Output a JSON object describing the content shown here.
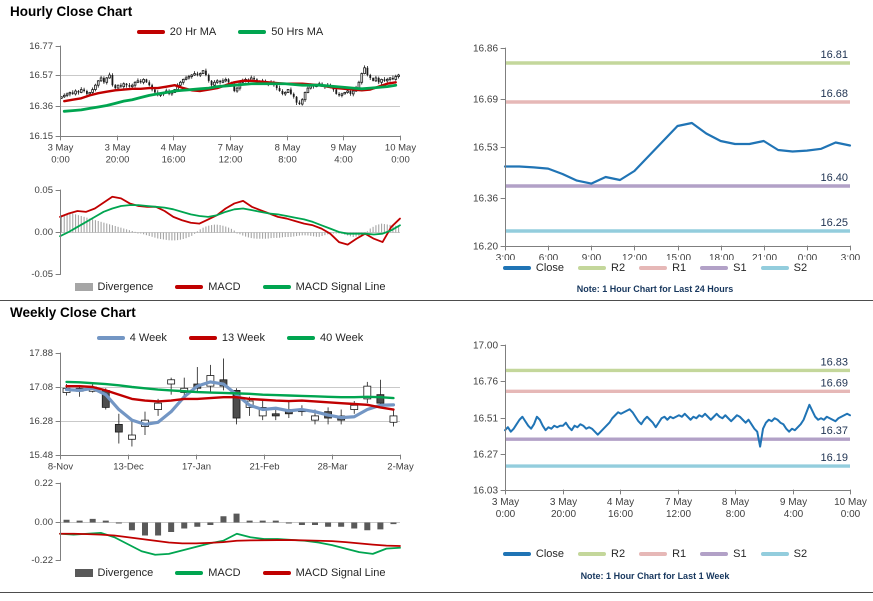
{
  "titles": {
    "hourly": "Hourly Close Chart",
    "weekly": "Weekly Close Chart"
  },
  "colors": {
    "grid": "#C9C9C9",
    "axis": "#7F7F7F",
    "tick_text": "#404040",
    "candle": "#1A1A1A",
    "candle_fill": "#4D4D4D",
    "level_label": "#1F3352",
    "note": "#17375E",
    "title": "#000000",
    "separator": "#4D4D4D",
    "close_blue": "#2074B5",
    "ma_red": "#C00000",
    "ma_green": "#00A550",
    "ma_blue": "#7396C4",
    "divergence_light": "#A6A6A6",
    "divergence_dark": "#595959",
    "r2": "#C4D79B",
    "r1": "#E6B8B7",
    "s1": "#B2A1C7",
    "s2": "#93CDDD"
  },
  "chart_data": [
    {
      "id": "hourly-price",
      "type": "candlestick",
      "title": "Hourly Close Chart",
      "ylim": [
        16.15,
        16.77
      ],
      "ytick_values": [
        16.77,
        16.57,
        16.36,
        16.15
      ],
      "ytick_labels": [
        "16.77",
        "16.57",
        "16.36",
        "16.15"
      ],
      "gridlines": [
        16.57,
        16.36
      ],
      "xtick_labels": [
        [
          "3 May",
          "0:00"
        ],
        [
          "3 May",
          "20:00"
        ],
        [
          "4 May",
          "16:00"
        ],
        [
          "7 May",
          "12:00"
        ],
        [
          "8 May",
          "8:00"
        ],
        [
          "9 May",
          "4:00"
        ],
        [
          "10 May",
          "0:00"
        ]
      ],
      "close": [
        16.42,
        16.43,
        16.44,
        16.45,
        16.44,
        16.46,
        16.45,
        16.47,
        16.46,
        16.44,
        16.45,
        16.47,
        16.5,
        16.53,
        16.55,
        16.52,
        16.55,
        16.57,
        16.5,
        16.48,
        16.5,
        16.49,
        16.51,
        16.5,
        16.49,
        16.5,
        16.52,
        16.53,
        16.52,
        16.54,
        16.52,
        16.5,
        16.47,
        16.45,
        16.43,
        16.44,
        16.45,
        16.46,
        16.44,
        16.45,
        16.47,
        16.5,
        16.52,
        16.54,
        16.55,
        16.56,
        16.57,
        16.58,
        16.57,
        16.58,
        16.6,
        16.57,
        16.53,
        16.5,
        16.52,
        16.53,
        16.52,
        16.53,
        16.54,
        16.52,
        16.5,
        16.46,
        16.48,
        16.52,
        16.53,
        16.54,
        16.53,
        16.55,
        16.54,
        16.53,
        16.52,
        16.53,
        16.52,
        16.51,
        16.52,
        16.5,
        16.48,
        16.46,
        16.44,
        16.45,
        16.47,
        16.44,
        16.42,
        16.38,
        16.37,
        16.4,
        16.45,
        16.48,
        16.5,
        16.49,
        16.5,
        16.51,
        16.5,
        16.49,
        16.5,
        16.49,
        16.47,
        16.44,
        16.43,
        16.44,
        16.45,
        16.46,
        16.44,
        16.46,
        16.48,
        16.52,
        16.58,
        16.62,
        16.57,
        16.55,
        16.53,
        16.55,
        16.52,
        16.54,
        16.53,
        16.54,
        16.55,
        16.54,
        16.56,
        16.57
      ],
      "series": [
        {
          "name": "20 Hr MA",
          "color": "#C00000",
          "width": 2.4,
          "values": [
            16.39,
            16.4,
            16.41,
            16.43,
            16.445,
            16.455,
            16.465,
            16.47,
            16.475,
            16.475,
            16.48,
            16.48,
            16.49,
            16.5,
            16.48,
            16.465,
            16.46,
            16.47,
            16.48,
            16.5,
            16.52,
            16.53,
            16.53,
            16.525,
            16.52,
            16.515,
            16.51,
            16.51,
            16.51,
            16.505,
            16.5,
            16.49,
            16.48,
            16.475,
            16.47,
            16.465,
            16.47,
            16.49,
            16.51,
            16.52
          ]
        },
        {
          "name": "50 Hrs MA",
          "color": "#00A550",
          "width": 2.8,
          "values": [
            16.32,
            16.325,
            16.33,
            16.34,
            16.35,
            16.36,
            16.375,
            16.39,
            16.4,
            16.415,
            16.43,
            16.44,
            16.45,
            16.46,
            16.465,
            16.47,
            16.475,
            16.48,
            16.49,
            16.495,
            16.5,
            16.505,
            16.51,
            16.51,
            16.51,
            16.51,
            16.51,
            16.505,
            16.5,
            16.5,
            16.5,
            16.495,
            16.49,
            16.485,
            16.48,
            16.475,
            16.48,
            16.485,
            16.49,
            16.5
          ]
        }
      ]
    },
    {
      "id": "hourly-macd",
      "type": "macd",
      "ylim": [
        -0.05,
        0.05
      ],
      "ytick_values": [
        0.05,
        0.0,
        -0.05
      ],
      "ytick_labels": [
        "0.05",
        "0.00",
        "-0.05"
      ],
      "divergence": {
        "name": "Divergence",
        "color": "#A6A6A6",
        "values": [
          0.02,
          0.021,
          0.022,
          0.02,
          0.018,
          0.016,
          0.014,
          0.012,
          0.01,
          0.008,
          0.006,
          0.004,
          0.002,
          0.0,
          -0.002,
          -0.004,
          -0.006,
          -0.008,
          -0.009,
          -0.01,
          -0.01,
          -0.009,
          -0.007,
          -0.004,
          0.002,
          0.006,
          0.008,
          0.009,
          0.008,
          0.006,
          0.003,
          -0.002,
          -0.005,
          -0.007,
          -0.008,
          -0.008,
          -0.008,
          -0.007,
          -0.007,
          -0.006,
          -0.006,
          -0.005,
          -0.004,
          -0.004,
          -0.005,
          -0.006,
          -0.004,
          -0.002,
          -0.001,
          -0.002,
          -0.004,
          -0.006,
          -0.005,
          -0.003,
          0.004,
          0.008,
          0.01,
          0.009,
          0.008,
          0.007
        ]
      },
      "lines": [
        {
          "name": "MACD",
          "color": "#C00000",
          "width": 1.8,
          "values": [
            0.018,
            0.022,
            0.025,
            0.024,
            0.028,
            0.035,
            0.042,
            0.04,
            0.034,
            0.031,
            0.03,
            0.03,
            0.025,
            0.018,
            0.014,
            0.011,
            0.01,
            0.015,
            0.02,
            0.028,
            0.034,
            0.037,
            0.03,
            0.026,
            0.022,
            0.018,
            0.016,
            0.013,
            0.01,
            0.008,
            0.004,
            -0.002,
            -0.012,
            -0.015,
            -0.008,
            -0.002,
            -0.008,
            -0.012,
            0.006,
            0.016
          ]
        },
        {
          "name": "MACD Signal Line",
          "color": "#00A550",
          "width": 1.8,
          "values": [
            -0.005,
            0.0,
            0.006,
            0.012,
            0.018,
            0.024,
            0.028,
            0.031,
            0.032,
            0.032,
            0.031,
            0.03,
            0.029,
            0.027,
            0.024,
            0.021,
            0.019,
            0.018,
            0.02,
            0.024,
            0.027,
            0.028,
            0.026,
            0.024,
            0.022,
            0.021,
            0.019,
            0.017,
            0.015,
            0.012,
            0.008,
            0.004,
            0.0,
            -0.002,
            -0.002,
            -0.002,
            -0.003,
            -0.002,
            0.002,
            0.008
          ]
        }
      ]
    },
    {
      "id": "hourly-pivot",
      "type": "pivot",
      "ylim": [
        16.2,
        16.86
      ],
      "ytick_values": [
        16.86,
        16.69,
        16.53,
        16.36,
        16.2
      ],
      "ytick_labels": [
        "16.86",
        "16.69",
        "16.53",
        "16.36",
        "16.20"
      ],
      "xtick_labels": [
        "3:00",
        "6:00",
        "9:00",
        "12:00",
        "15:00",
        "18:00",
        "21:00",
        "0:00",
        "3:00"
      ],
      "close": {
        "name": "Close",
        "color": "#2074B5",
        "width": 2.2,
        "values": [
          16.465,
          16.465,
          16.462,
          16.458,
          16.44,
          16.418,
          16.408,
          16.43,
          16.42,
          16.45,
          16.5,
          16.55,
          16.6,
          16.61,
          16.575,
          16.55,
          16.54,
          16.54,
          16.55,
          16.52,
          16.515,
          16.518,
          16.524,
          16.545,
          16.535
        ]
      },
      "levels": [
        {
          "name": "R2",
          "label": "16.81",
          "value": 16.81,
          "color": "#C4D79B"
        },
        {
          "name": "R1",
          "label": "16.68",
          "value": 16.68,
          "color": "#E6B8B7"
        },
        {
          "name": "S1",
          "label": "16.40",
          "value": 16.4,
          "color": "#B2A1C7"
        },
        {
          "name": "S2",
          "label": "16.25",
          "value": 16.25,
          "color": "#93CDDD"
        }
      ],
      "note": "Note: 1 Hour Chart for Last 24 Hours"
    },
    {
      "id": "weekly-price",
      "type": "candlestick",
      "title": "Weekly Close Chart",
      "ylim": [
        15.48,
        17.88
      ],
      "ytick_values": [
        17.88,
        17.08,
        16.28,
        15.48
      ],
      "ytick_labels": [
        "17.88",
        "17.08",
        "16.28",
        "15.48"
      ],
      "gridlines": [
        17.08,
        16.28
      ],
      "xtick_labels": [
        "8-Nov",
        "13-Dec",
        "17-Jan",
        "21-Feb",
        "28-Mar",
        "2-May"
      ],
      "open": [
        16.95,
        17.05,
        16.98,
        17.0,
        16.2,
        15.85,
        16.15,
        16.55,
        17.15,
        16.95,
        17.15,
        17.1,
        17.25,
        17.0,
        16.6,
        16.4,
        16.45,
        16.55,
        16.55,
        16.3,
        16.5,
        16.4,
        16.55,
        16.8,
        16.9,
        16.25
      ],
      "close": [
        17.05,
        16.98,
        17.08,
        16.6,
        16.02,
        15.95,
        16.3,
        16.7,
        17.25,
        17.05,
        17.05,
        17.35,
        17.1,
        16.35,
        16.75,
        16.6,
        16.4,
        16.45,
        16.5,
        16.4,
        16.35,
        16.3,
        16.65,
        17.1,
        16.7,
        16.4
      ],
      "high": [
        17.15,
        17.1,
        17.18,
        17.05,
        16.45,
        16.3,
        16.5,
        16.8,
        17.3,
        17.3,
        17.55,
        17.6,
        17.75,
        17.05,
        16.85,
        16.75,
        16.55,
        16.75,
        16.65,
        16.55,
        16.6,
        16.55,
        16.75,
        17.2,
        17.25,
        16.55
      ],
      "low": [
        16.88,
        16.85,
        16.95,
        16.55,
        15.75,
        15.68,
        15.95,
        16.4,
        16.9,
        16.85,
        16.95,
        16.95,
        17.0,
        16.2,
        16.4,
        16.3,
        16.3,
        16.35,
        16.4,
        16.2,
        16.2,
        16.2,
        16.45,
        16.7,
        16.6,
        16.15
      ],
      "series": [
        {
          "name": "4 Week",
          "color": "#7396C4",
          "width": 3.2,
          "values": [
            17.02,
            17.0,
            17.05,
            16.9,
            16.55,
            16.3,
            16.2,
            16.25,
            16.5,
            16.85,
            17.1,
            17.2,
            17.15,
            16.9,
            16.65,
            16.55,
            16.58,
            16.52,
            16.55,
            16.5,
            16.42,
            16.36,
            16.38,
            16.55,
            16.65,
            16.66
          ]
        },
        {
          "name": "13 Week",
          "color": "#C00000",
          "width": 2.4,
          "values": [
            17.1,
            17.1,
            17.08,
            17.0,
            16.9,
            16.8,
            16.76,
            16.74,
            16.76,
            16.8,
            16.8,
            16.82,
            16.84,
            16.84,
            16.8,
            16.78,
            16.76,
            16.75,
            16.76,
            16.74,
            16.72,
            16.7,
            16.68,
            16.66,
            16.6,
            16.55
          ]
        },
        {
          "name": "40 Week",
          "color": "#00A550",
          "width": 2.4,
          "values": [
            17.2,
            17.19,
            17.17,
            17.15,
            17.12,
            17.08,
            17.05,
            17.02,
            17.0,
            16.98,
            16.96,
            16.95,
            16.94,
            16.93,
            16.92,
            16.9,
            16.89,
            16.88,
            16.87,
            16.86,
            16.85,
            16.84,
            16.84,
            16.85,
            16.84,
            16.82
          ]
        }
      ]
    },
    {
      "id": "weekly-macd",
      "type": "macd",
      "ylim": [
        -0.22,
        0.22
      ],
      "ytick_values": [
        0.22,
        0.0,
        -0.22
      ],
      "ytick_labels": [
        "0.22",
        "0.00",
        "-0.22"
      ],
      "divergence": {
        "name": "Divergence",
        "color": "#595959",
        "values": [
          0.01,
          0.005,
          0.015,
          0.005,
          -0.01,
          -0.05,
          -0.08,
          -0.08,
          -0.06,
          -0.04,
          -0.03,
          -0.02,
          0.03,
          0.045,
          0.005,
          0.005,
          0.005,
          -0.01,
          -0.02,
          -0.02,
          -0.03,
          -0.03,
          -0.04,
          -0.05,
          -0.045,
          -0.015
        ]
      },
      "lines": [
        {
          "name": "MACD",
          "color": "#00A550",
          "width": 1.8,
          "values": [
            -0.07,
            -0.075,
            -0.07,
            -0.065,
            -0.09,
            -0.13,
            -0.17,
            -0.19,
            -0.185,
            -0.165,
            -0.145,
            -0.125,
            -0.11,
            -0.07,
            -0.09,
            -0.1,
            -0.1,
            -0.105,
            -0.11,
            -0.12,
            -0.135,
            -0.155,
            -0.175,
            -0.185,
            -0.155,
            -0.15
          ]
        },
        {
          "name": "MACD Signal Line",
          "color": "#C00000",
          "width": 1.8,
          "values": [
            -0.07,
            -0.07,
            -0.072,
            -0.075,
            -0.08,
            -0.09,
            -0.1,
            -0.11,
            -0.12,
            -0.125,
            -0.125,
            -0.122,
            -0.118,
            -0.11,
            -0.108,
            -0.107,
            -0.106,
            -0.106,
            -0.108,
            -0.11,
            -0.112,
            -0.118,
            -0.125,
            -0.132,
            -0.138,
            -0.14
          ]
        }
      ]
    },
    {
      "id": "weekly-pivot",
      "type": "pivot",
      "ylim": [
        16.03,
        17.0
      ],
      "ytick_values": [
        17.0,
        16.76,
        16.51,
        16.27,
        16.03
      ],
      "ytick_labels": [
        "17.00",
        "16.76",
        "16.51",
        "16.27",
        "16.03"
      ],
      "xtick_labels": [
        [
          "3 May",
          "0:00"
        ],
        [
          "3 May",
          "20:00"
        ],
        [
          "4 May",
          "16:00"
        ],
        [
          "7 May",
          "12:00"
        ],
        [
          "8 May",
          "8:00"
        ],
        [
          "9 May",
          "4:00"
        ],
        [
          "10 May",
          "0:00"
        ]
      ],
      "close": {
        "name": "Close",
        "color": "#2074B5",
        "width": 2.0,
        "values": [
          16.43,
          16.45,
          16.42,
          16.44,
          16.47,
          16.5,
          16.52,
          16.49,
          16.46,
          16.44,
          16.47,
          16.52,
          16.5,
          16.46,
          16.43,
          16.45,
          16.44,
          16.46,
          16.45,
          16.46,
          16.46,
          16.48,
          16.45,
          16.43,
          16.46,
          16.45,
          16.47,
          16.46,
          16.44,
          16.45,
          16.44,
          16.42,
          16.4,
          16.42,
          16.44,
          16.46,
          16.48,
          16.51,
          16.53,
          16.55,
          16.54,
          16.55,
          16.56,
          16.57,
          16.55,
          16.52,
          16.49,
          16.47,
          16.5,
          16.52,
          16.5,
          16.48,
          16.45,
          16.48,
          16.51,
          16.52,
          16.5,
          16.52,
          16.51,
          16.52,
          16.53,
          16.52,
          16.54,
          16.52,
          16.5,
          16.52,
          16.51,
          16.53,
          16.52,
          16.54,
          16.52,
          16.5,
          16.52,
          16.54,
          16.52,
          16.51,
          16.53,
          16.51,
          16.49,
          16.51,
          16.53,
          16.52,
          16.5,
          16.48,
          16.5,
          16.47,
          16.44,
          16.42,
          16.32,
          16.44,
          16.48,
          16.5,
          16.49,
          16.51,
          16.5,
          16.48,
          16.47,
          16.44,
          16.42,
          16.44,
          16.43,
          16.45,
          16.47,
          16.5,
          16.55,
          16.6,
          16.56,
          16.52,
          16.5,
          16.51,
          16.5,
          16.52,
          16.51,
          16.5,
          16.49,
          16.51,
          16.52,
          16.53,
          16.54,
          16.53
        ]
      },
      "levels": [
        {
          "name": "R2",
          "label": "16.83",
          "value": 16.83,
          "color": "#C4D79B"
        },
        {
          "name": "R1",
          "label": "16.69",
          "value": 16.69,
          "color": "#E6B8B7"
        },
        {
          "name": "S1",
          "label": "16.37",
          "value": 16.37,
          "color": "#B2A1C7"
        },
        {
          "name": "S2",
          "label": "16.19",
          "value": 16.19,
          "color": "#93CDDD"
        }
      ],
      "note": "Note: 1 Hour Chart for Last 1 Week"
    }
  ]
}
